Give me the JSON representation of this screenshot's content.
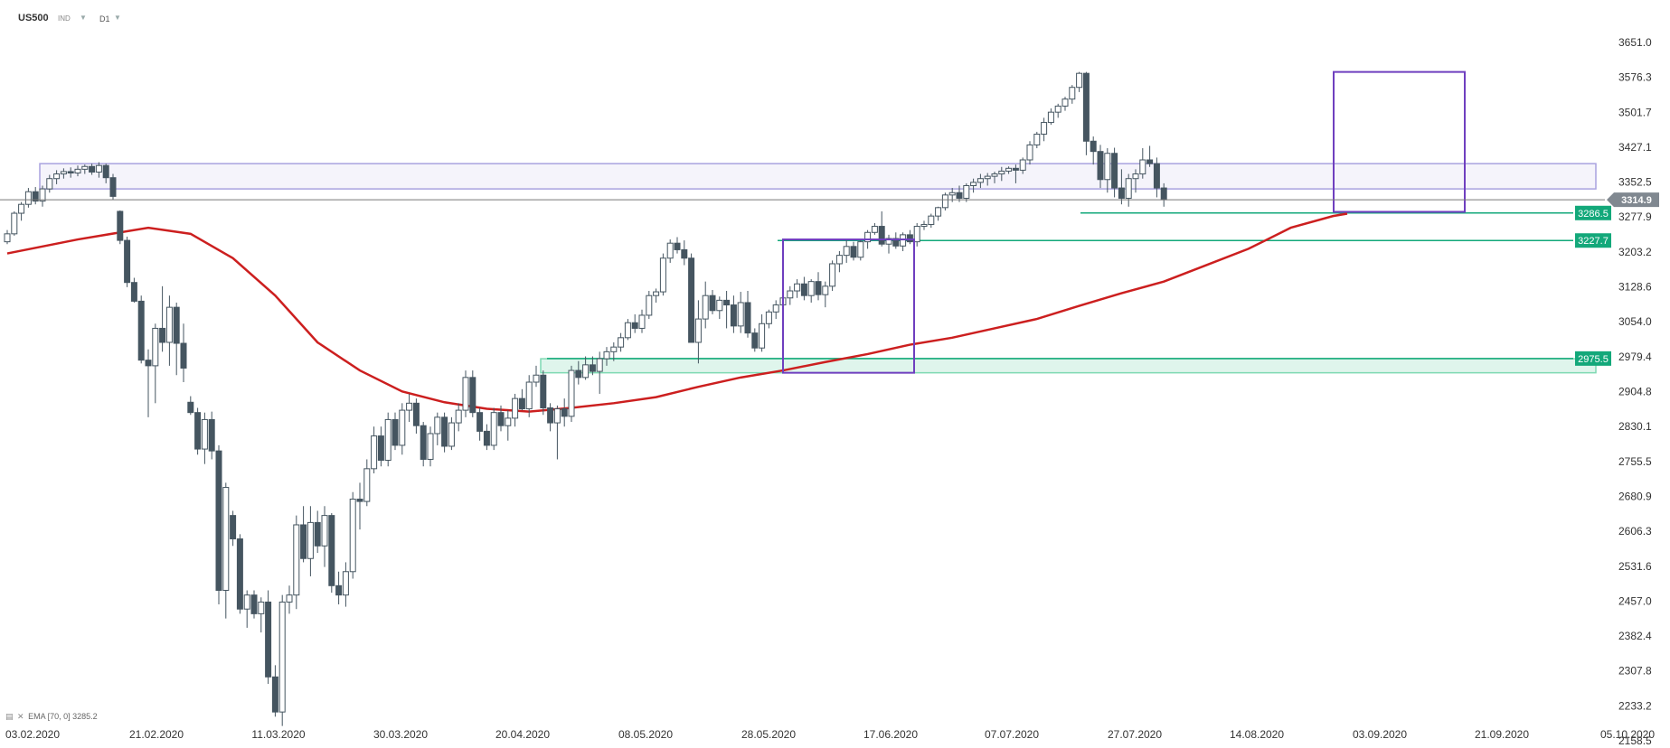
{
  "toolbar": {
    "symbol": "US500",
    "instrument_type": "IND",
    "interval": "D1",
    "caret_icon": "chevron-down-icon"
  },
  "indicator_legend": {
    "icons": [
      "indicator-list-icon",
      "close-icon"
    ],
    "text": "EMA [70, 0] 3285.2"
  },
  "chart_data": {
    "type": "candlestick",
    "symbol": "US500",
    "timeframe": "D1",
    "y_ticks": [
      3651.0,
      3576.3,
      3501.7,
      3427.1,
      3352.5,
      3277.9,
      3203.2,
      3128.6,
      3054.0,
      2979.4,
      2904.8,
      2830.1,
      2755.5,
      2680.9,
      2606.3,
      2531.6,
      2457.0,
      2382.4,
      2307.8,
      2233.2,
      2158.5
    ],
    "x_ticks": [
      "03.02.2020",
      "21.02.2020",
      "11.03.2020",
      "30.03.2020",
      "20.04.2020",
      "08.05.2020",
      "28.05.2020",
      "17.06.2020",
      "07.07.2020",
      "27.07.2020",
      "14.08.2020",
      "03.09.2020",
      "21.09.2020",
      "05.10.2020"
    ],
    "ylim": [
      2158.5,
      3651.0
    ],
    "current_price": 3314.9,
    "levels": [
      {
        "label": "3286.5",
        "value": 3286.5,
        "color": "#13a87a"
      },
      {
        "label": "3227.7",
        "value": 3227.7,
        "color": "#13a87a"
      },
      {
        "label": "2975.5",
        "value": 2975.5,
        "color": "#13a87a"
      }
    ],
    "zones": [
      {
        "from": 3338,
        "to": 3392,
        "color": "#a9a2df",
        "x_start": "03.02.2020"
      },
      {
        "from": 2945,
        "to": 2975,
        "color": "#7fd9b3",
        "x_start": "20.04.2020"
      }
    ],
    "boxes": [
      {
        "from_date": "02.06.2020",
        "to_date": "18.06.2020",
        "low": 2945,
        "high": 3230,
        "color": "#6f3fbf"
      },
      {
        "from_date": "28.08.2020",
        "to_date": "16.09.2020",
        "low": 3289,
        "high": 3588,
        "color": "#6f3fbf"
      }
    ],
    "ema": {
      "name": "EMA [70, 0]",
      "value": 3285.2,
      "color": "#cc1f1f",
      "points": [
        [
          0,
          3200
        ],
        [
          10,
          3230
        ],
        [
          20,
          3255
        ],
        [
          26,
          3242
        ],
        [
          32,
          3190
        ],
        [
          38,
          3110
        ],
        [
          44,
          3010
        ],
        [
          50,
          2950
        ],
        [
          56,
          2905
        ],
        [
          62,
          2882
        ],
        [
          68,
          2868
        ],
        [
          74,
          2862
        ],
        [
          80,
          2870
        ],
        [
          86,
          2880
        ],
        [
          92,
          2893
        ],
        [
          98,
          2915
        ],
        [
          104,
          2935
        ],
        [
          110,
          2950
        ],
        [
          116,
          2968
        ],
        [
          122,
          2985
        ],
        [
          128,
          3005
        ],
        [
          134,
          3020
        ],
        [
          140,
          3040
        ],
        [
          146,
          3060
        ],
        [
          152,
          3088
        ],
        [
          158,
          3115
        ],
        [
          164,
          3140
        ],
        [
          170,
          3175
        ],
        [
          176,
          3210
        ],
        [
          182,
          3255
        ],
        [
          188,
          3280
        ],
        [
          190,
          3285.2
        ]
      ]
    },
    "candles": [
      [
        3225,
        3250,
        3220,
        3242
      ],
      [
        3242,
        3290,
        3238,
        3286
      ],
      [
        3286,
        3310,
        3270,
        3305
      ],
      [
        3305,
        3340,
        3298,
        3332
      ],
      [
        3332,
        3342,
        3305,
        3312
      ],
      [
        3312,
        3345,
        3300,
        3338
      ],
      [
        3338,
        3368,
        3330,
        3360
      ],
      [
        3360,
        3378,
        3348,
        3370
      ],
      [
        3370,
        3382,
        3360,
        3375
      ],
      [
        3375,
        3384,
        3362,
        3372
      ],
      [
        3372,
        3388,
        3365,
        3380
      ],
      [
        3380,
        3390,
        3370,
        3386
      ],
      [
        3386,
        3392,
        3368,
        3374
      ],
      [
        3374,
        3395,
        3362,
        3388
      ],
      [
        3388,
        3392,
        3350,
        3362
      ],
      [
        3362,
        3370,
        3315,
        3322
      ],
      [
        3290,
        3292,
        3220,
        3228
      ],
      [
        3228,
        3236,
        3128,
        3138
      ],
      [
        3138,
        3148,
        3095,
        3098
      ],
      [
        3098,
        3110,
        2965,
        2972
      ],
      [
        2972,
        2995,
        2850,
        2960
      ],
      [
        2960,
        3050,
        2880,
        3040
      ],
      [
        3040,
        3130,
        2990,
        3010
      ],
      [
        3010,
        3110,
        2960,
        3085
      ],
      [
        3085,
        3095,
        2940,
        3008
      ],
      [
        3008,
        3050,
        2925,
        2955
      ],
      [
        2882,
        2895,
        2855,
        2860
      ],
      [
        2860,
        2870,
        2770,
        2782
      ],
      [
        2782,
        2860,
        2750,
        2845
      ],
      [
        2845,
        2862,
        2760,
        2778
      ],
      [
        2778,
        2790,
        2450,
        2480
      ],
      [
        2480,
        2710,
        2420,
        2700
      ],
      [
        2640,
        2650,
        2575,
        2590
      ],
      [
        2590,
        2600,
        2430,
        2440
      ],
      [
        2440,
        2480,
        2400,
        2470
      ],
      [
        2470,
        2480,
        2420,
        2430
      ],
      [
        2430,
        2465,
        2390,
        2455
      ],
      [
        2455,
        2480,
        2280,
        2295
      ],
      [
        2295,
        2320,
        2210,
        2220
      ],
      [
        2220,
        2470,
        2190,
        2455
      ],
      [
        2455,
        2490,
        2430,
        2470
      ],
      [
        2470,
        2640,
        2440,
        2620
      ],
      [
        2620,
        2660,
        2540,
        2548
      ],
      [
        2548,
        2660,
        2510,
        2625
      ],
      [
        2625,
        2650,
        2560,
        2575
      ],
      [
        2575,
        2660,
        2530,
        2640
      ],
      [
        2640,
        2645,
        2475,
        2490
      ],
      [
        2490,
        2520,
        2450,
        2470
      ],
      [
        2470,
        2540,
        2445,
        2520
      ],
      [
        2520,
        2690,
        2505,
        2675
      ],
      [
        2675,
        2710,
        2610,
        2670
      ],
      [
        2670,
        2760,
        2660,
        2740
      ],
      [
        2740,
        2830,
        2730,
        2810
      ],
      [
        2810,
        2830,
        2745,
        2758
      ],
      [
        2758,
        2860,
        2745,
        2845
      ],
      [
        2845,
        2860,
        2780,
        2790
      ],
      [
        2790,
        2880,
        2770,
        2865
      ],
      [
        2865,
        2900,
        2840,
        2880
      ],
      [
        2880,
        2890,
        2815,
        2832
      ],
      [
        2832,
        2840,
        2745,
        2760
      ],
      [
        2760,
        2830,
        2745,
        2815
      ],
      [
        2815,
        2860,
        2790,
        2850
      ],
      [
        2850,
        2860,
        2775,
        2788
      ],
      [
        2788,
        2850,
        2780,
        2838
      ],
      [
        2838,
        2880,
        2820,
        2865
      ],
      [
        2865,
        2950,
        2850,
        2935
      ],
      [
        2935,
        2950,
        2850,
        2860
      ],
      [
        2860,
        2870,
        2800,
        2820
      ],
      [
        2820,
        2835,
        2780,
        2790
      ],
      [
        2790,
        2870,
        2780,
        2860
      ],
      [
        2860,
        2875,
        2820,
        2832
      ],
      [
        2832,
        2865,
        2800,
        2848
      ],
      [
        2848,
        2900,
        2830,
        2890
      ],
      [
        2890,
        2910,
        2865,
        2868
      ],
      [
        2868,
        2940,
        2850,
        2925
      ],
      [
        2925,
        2960,
        2915,
        2940
      ],
      [
        2940,
        2950,
        2855,
        2870
      ],
      [
        2870,
        2880,
        2820,
        2838
      ],
      [
        2838,
        2875,
        2760,
        2868
      ],
      [
        2868,
        2890,
        2830,
        2852
      ],
      [
        2852,
        2960,
        2840,
        2950
      ],
      [
        2950,
        2970,
        2920,
        2935
      ],
      [
        2935,
        2980,
        2930,
        2962
      ],
      [
        2962,
        2980,
        2940,
        2948
      ],
      [
        2948,
        2990,
        2900,
        2975
      ],
      [
        2975,
        3000,
        2960,
        2990
      ],
      [
        2990,
        3010,
        2970,
        3000
      ],
      [
        3000,
        3030,
        2990,
        3020
      ],
      [
        3020,
        3060,
        3015,
        3052
      ],
      [
        3052,
        3070,
        3030,
        3040
      ],
      [
        3040,
        3080,
        3030,
        3068
      ],
      [
        3068,
        3120,
        3060,
        3110
      ],
      [
        3110,
        3125,
        3095,
        3118
      ],
      [
        3118,
        3200,
        3110,
        3190
      ],
      [
        3190,
        3230,
        3180,
        3222
      ],
      [
        3222,
        3235,
        3200,
        3208
      ],
      [
        3208,
        3228,
        3175,
        3190
      ],
      [
        3190,
        3200,
        3015,
        3010
      ],
      [
        3010,
        3100,
        2965,
        3060
      ],
      [
        3060,
        3140,
        3040,
        3110
      ],
      [
        3110,
        3122,
        3070,
        3078
      ],
      [
        3078,
        3108,
        3060,
        3100
      ],
      [
        3100,
        3120,
        3040,
        3090
      ],
      [
        3090,
        3110,
        3030,
        3045
      ],
      [
        3045,
        3118,
        3030,
        3095
      ],
      [
        3095,
        3120,
        3020,
        3030
      ],
      [
        3030,
        3040,
        2990,
        2998
      ],
      [
        2998,
        3070,
        2990,
        3050
      ],
      [
        3050,
        3080,
        3040,
        3075
      ],
      [
        3075,
        3100,
        3060,
        3090
      ],
      [
        3090,
        3115,
        3080,
        3105
      ],
      [
        3105,
        3130,
        3090,
        3120
      ],
      [
        3120,
        3145,
        3105,
        3135
      ],
      [
        3135,
        3150,
        3100,
        3110
      ],
      [
        3110,
        3145,
        3095,
        3140
      ],
      [
        3140,
        3160,
        3100,
        3112
      ],
      [
        3112,
        3140,
        3085,
        3130
      ],
      [
        3130,
        3185,
        3120,
        3178
      ],
      [
        3178,
        3205,
        3160,
        3196
      ],
      [
        3196,
        3230,
        3180,
        3215
      ],
      [
        3215,
        3225,
        3185,
        3192
      ],
      [
        3192,
        3230,
        3185,
        3225
      ],
      [
        3225,
        3250,
        3210,
        3245
      ],
      [
        3245,
        3265,
        3240,
        3258
      ],
      [
        3258,
        3290,
        3215,
        3220
      ],
      [
        3220,
        3240,
        3200,
        3232
      ],
      [
        3232,
        3245,
        3210,
        3216
      ],
      [
        3216,
        3245,
        3205,
        3240
      ],
      [
        3240,
        3250,
        3220,
        3225
      ],
      [
        3225,
        3265,
        3215,
        3258
      ],
      [
        3258,
        3270,
        3250,
        3262
      ],
      [
        3262,
        3285,
        3255,
        3280
      ],
      [
        3280,
        3300,
        3270,
        3298
      ],
      [
        3298,
        3330,
        3292,
        3325
      ],
      [
        3325,
        3340,
        3310,
        3330
      ],
      [
        3330,
        3345,
        3310,
        3318
      ],
      [
        3318,
        3350,
        3310,
        3345
      ],
      [
        3345,
        3360,
        3330,
        3352
      ],
      [
        3352,
        3370,
        3340,
        3360
      ],
      [
        3360,
        3372,
        3345,
        3365
      ],
      [
        3365,
        3375,
        3350,
        3370
      ],
      [
        3370,
        3385,
        3355,
        3376
      ],
      [
        3376,
        3386,
        3370,
        3382
      ],
      [
        3382,
        3390,
        3350,
        3378
      ],
      [
        3378,
        3405,
        3370,
        3400
      ],
      [
        3400,
        3440,
        3390,
        3432
      ],
      [
        3432,
        3460,
        3425,
        3455
      ],
      [
        3455,
        3490,
        3440,
        3480
      ],
      [
        3480,
        3510,
        3475,
        3502
      ],
      [
        3502,
        3520,
        3490,
        3515
      ],
      [
        3515,
        3535,
        3505,
        3530
      ],
      [
        3530,
        3560,
        3520,
        3555
      ],
      [
        3555,
        3588,
        3545,
        3585
      ],
      [
        3585,
        3588,
        3410,
        3440
      ],
      [
        3440,
        3450,
        3390,
        3418
      ],
      [
        3418,
        3432,
        3340,
        3358
      ],
      [
        3358,
        3425,
        3330,
        3414
      ],
      [
        3414,
        3426,
        3320,
        3340
      ],
      [
        3340,
        3380,
        3305,
        3318
      ],
      [
        3318,
        3370,
        3300,
        3360
      ],
      [
        3360,
        3380,
        3330,
        3370
      ],
      [
        3370,
        3425,
        3360,
        3400
      ],
      [
        3400,
        3430,
        3385,
        3392
      ],
      [
        3392,
        3405,
        3320,
        3340
      ],
      [
        3340,
        3350,
        3300,
        3314.9
      ]
    ]
  }
}
